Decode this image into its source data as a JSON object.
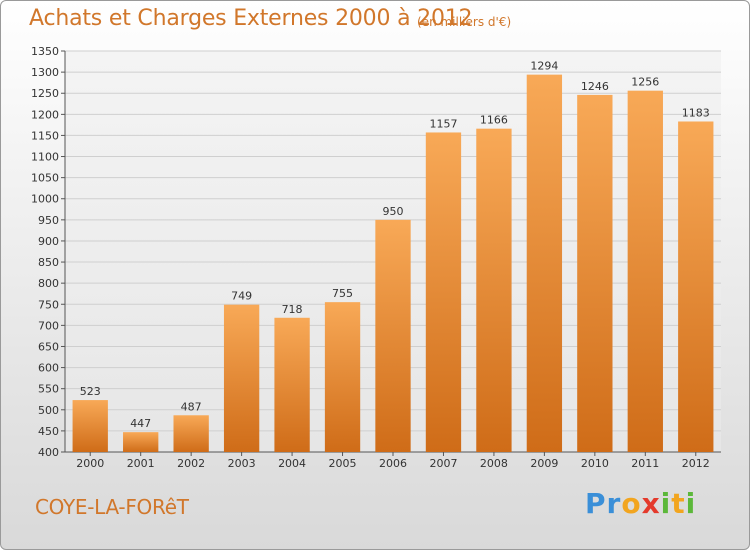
{
  "header": {
    "title": "Achats et Charges Externes 2000 à 2012",
    "subtitle": "(en milliers d'€)"
  },
  "footer": {
    "commune": "COYE-LA-FORêT",
    "logo_letters": [
      {
        "ch": "P",
        "color": "#3a8fd8"
      },
      {
        "ch": "r",
        "color": "#3a8fd8"
      },
      {
        "ch": "o",
        "color": "#f2a51f"
      },
      {
        "ch": "x",
        "color": "#e43a2c"
      },
      {
        "ch": "i",
        "color": "#5cb83a"
      },
      {
        "ch": "t",
        "color": "#f2a51f"
      },
      {
        "ch": "i",
        "color": "#5cb83a"
      }
    ]
  },
  "chart_data": {
    "type": "bar",
    "title": "Achats et Charges Externes 2000 à 2012",
    "subtitle": "(en milliers d'€)",
    "categories": [
      "2000",
      "2001",
      "2002",
      "2003",
      "2004",
      "2005",
      "2006",
      "2007",
      "2008",
      "2009",
      "2010",
      "2011",
      "2012"
    ],
    "values": [
      523,
      447,
      487,
      749,
      718,
      755,
      950,
      1157,
      1166,
      1294,
      1246,
      1256,
      1183
    ],
    "ylim": [
      400,
      1350
    ],
    "yticks": [
      400,
      450,
      500,
      550,
      600,
      650,
      700,
      750,
      800,
      850,
      900,
      950,
      1000,
      1050,
      1100,
      1150,
      1200,
      1250,
      1300,
      1350
    ],
    "grid": true,
    "data_labels": true,
    "colors": {
      "bar_light": "#f7a552",
      "bar_dark": "#d06d1a",
      "grid": "#cfcfcf",
      "axis": "#555555",
      "text": "#d1772b"
    }
  }
}
